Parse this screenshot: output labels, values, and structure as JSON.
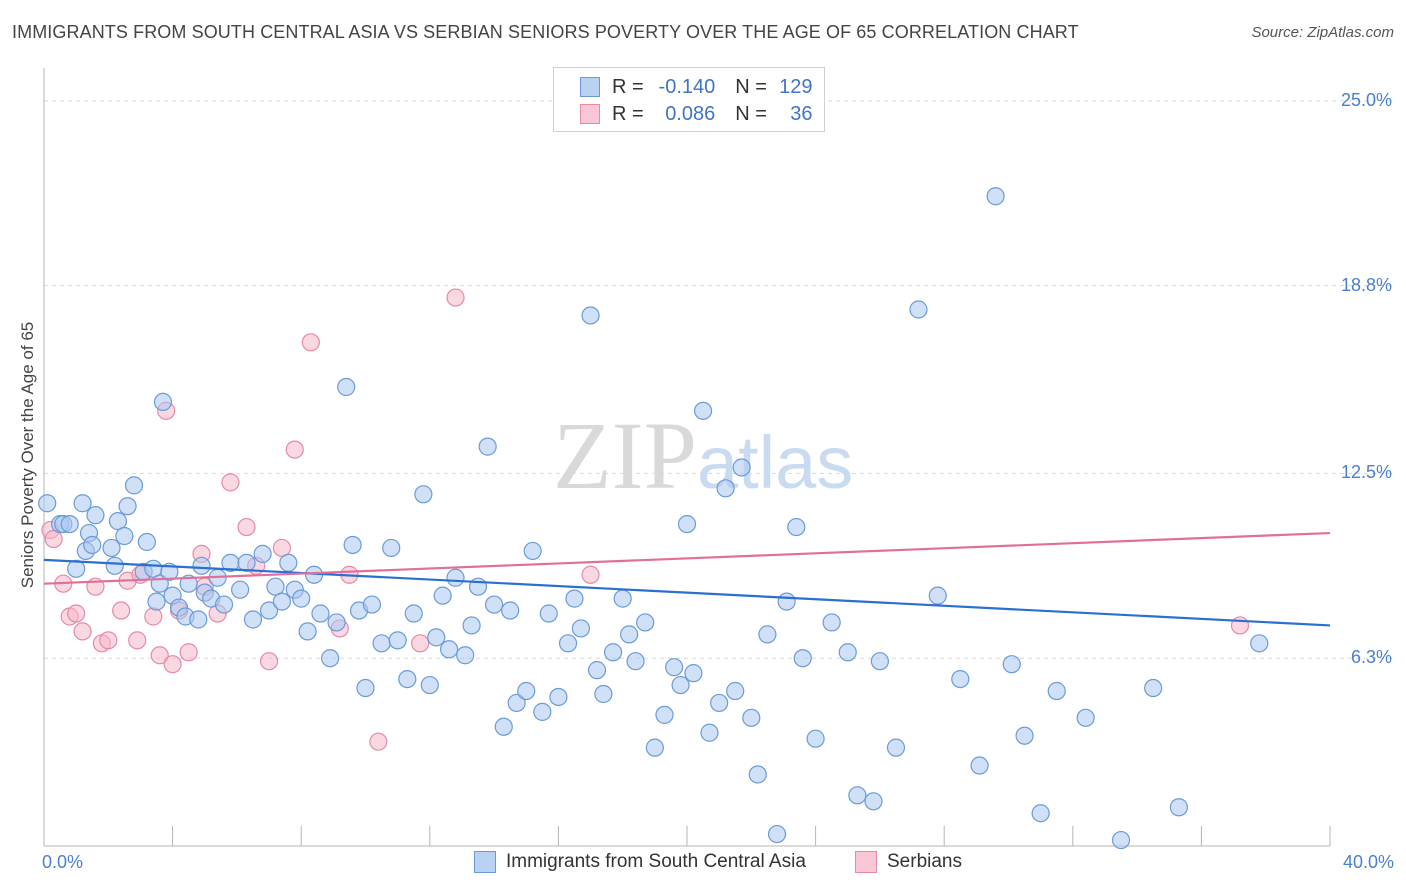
{
  "title": "IMMIGRANTS FROM SOUTH CENTRAL ASIA VS SERBIAN SENIORS POVERTY OVER THE AGE OF 65 CORRELATION CHART",
  "source": "Source: ZipAtlas.com",
  "watermark": {
    "zip": "ZIP",
    "atlas": "atlas"
  },
  "legend": {
    "r_label": "R =",
    "n_label": "N =",
    "rows": [
      {
        "name": "Immigrants from South Central Asia",
        "r": "-0.140",
        "n": "129"
      },
      {
        "name": "Serbians",
        "r": "0.086",
        "n": "36"
      }
    ]
  },
  "colors": {
    "blue_fill": "#a9c8f0",
    "blue_stroke": "#6a9bd8",
    "blue_line": "#2b6fd0",
    "pink_fill": "#f5b8cb",
    "pink_stroke": "#e68aa6",
    "pink_line": "#e0709a",
    "tick_text": "#4a7fd0",
    "grid": "#d8d8d8"
  },
  "chart_data": {
    "type": "scatter",
    "title": "IMMIGRANTS FROM SOUTH CENTRAL ASIA VS SERBIAN SENIORS POVERTY OVER THE AGE OF 65 CORRELATION CHART",
    "xlabel": "",
    "ylabel": "Seniors Poverty Over the Age of 65",
    "xlim": [
      0,
      40
    ],
    "ylim": [
      0,
      25.7
    ],
    "x_tick_labels": [
      "0.0%",
      "40.0%"
    ],
    "y_ticks": [
      6.3,
      12.5,
      18.8,
      25.0
    ],
    "y_tick_labels": [
      "6.3%",
      "12.5%",
      "18.8%",
      "25.0%"
    ],
    "legend_labels": [
      "Immigrants from South Central Asia",
      "Serbians"
    ],
    "series": [
      {
        "name": "Immigrants from South Central Asia",
        "trend": {
          "x": [
            0,
            40
          ],
          "y": [
            9.6,
            7.4
          ]
        },
        "points": [
          [
            0.1,
            11.5
          ],
          [
            0.5,
            10.8
          ],
          [
            0.6,
            10.8
          ],
          [
            0.8,
            10.8
          ],
          [
            1.0,
            9.3
          ],
          [
            1.2,
            11.5
          ],
          [
            1.3,
            9.9
          ],
          [
            1.4,
            10.5
          ],
          [
            1.5,
            10.1
          ],
          [
            1.6,
            11.1
          ],
          [
            2.1,
            10.0
          ],
          [
            2.2,
            9.4
          ],
          [
            2.3,
            10.9
          ],
          [
            2.5,
            10.4
          ],
          [
            2.6,
            11.4
          ],
          [
            2.8,
            12.1
          ],
          [
            3.1,
            9.2
          ],
          [
            3.2,
            10.2
          ],
          [
            3.4,
            9.3
          ],
          [
            3.5,
            8.2
          ],
          [
            3.6,
            8.8
          ],
          [
            3.7,
            14.9
          ],
          [
            3.9,
            9.2
          ],
          [
            4.0,
            8.4
          ],
          [
            4.2,
            8.0
          ],
          [
            4.4,
            7.7
          ],
          [
            4.5,
            8.8
          ],
          [
            4.8,
            7.6
          ],
          [
            4.9,
            9.4
          ],
          [
            5.0,
            8.5
          ],
          [
            5.2,
            8.3
          ],
          [
            5.4,
            9.0
          ],
          [
            5.6,
            8.1
          ],
          [
            5.8,
            9.5
          ],
          [
            6.1,
            8.6
          ],
          [
            6.3,
            9.5
          ],
          [
            6.5,
            7.6
          ],
          [
            6.8,
            9.8
          ],
          [
            7.0,
            7.9
          ],
          [
            7.2,
            8.7
          ],
          [
            7.4,
            8.2
          ],
          [
            7.6,
            9.5
          ],
          [
            7.8,
            8.6
          ],
          [
            8.0,
            8.3
          ],
          [
            8.2,
            7.2
          ],
          [
            8.4,
            9.1
          ],
          [
            8.6,
            7.8
          ],
          [
            8.9,
            6.3
          ],
          [
            9.1,
            7.5
          ],
          [
            9.4,
            15.4
          ],
          [
            9.6,
            10.1
          ],
          [
            9.8,
            7.9
          ],
          [
            10.0,
            5.3
          ],
          [
            10.2,
            8.1
          ],
          [
            10.5,
            6.8
          ],
          [
            10.8,
            10.0
          ],
          [
            11.0,
            6.9
          ],
          [
            11.3,
            5.6
          ],
          [
            11.5,
            7.8
          ],
          [
            11.8,
            11.8
          ],
          [
            12.0,
            5.4
          ],
          [
            12.2,
            7.0
          ],
          [
            12.4,
            8.4
          ],
          [
            12.6,
            6.6
          ],
          [
            12.8,
            9.0
          ],
          [
            13.1,
            6.4
          ],
          [
            13.3,
            7.4
          ],
          [
            13.5,
            8.7
          ],
          [
            13.8,
            13.4
          ],
          [
            14.0,
            8.1
          ],
          [
            14.3,
            4.0
          ],
          [
            14.5,
            7.9
          ],
          [
            14.7,
            4.8
          ],
          [
            15.0,
            5.2
          ],
          [
            15.2,
            9.9
          ],
          [
            15.5,
            4.5
          ],
          [
            15.7,
            7.8
          ],
          [
            16.0,
            5.0
          ],
          [
            16.3,
            6.8
          ],
          [
            16.5,
            8.3
          ],
          [
            16.7,
            7.3
          ],
          [
            17.0,
            17.8
          ],
          [
            17.2,
            5.9
          ],
          [
            17.4,
            5.1
          ],
          [
            17.7,
            6.5
          ],
          [
            18.0,
            8.3
          ],
          [
            18.2,
            7.1
          ],
          [
            18.4,
            6.2
          ],
          [
            18.7,
            7.5
          ],
          [
            19.0,
            3.3
          ],
          [
            19.3,
            4.4
          ],
          [
            19.6,
            6.0
          ],
          [
            19.8,
            5.4
          ],
          [
            20.0,
            10.8
          ],
          [
            20.2,
            5.8
          ],
          [
            20.5,
            14.6
          ],
          [
            20.7,
            3.8
          ],
          [
            21.0,
            4.8
          ],
          [
            21.2,
            12.0
          ],
          [
            21.5,
            5.2
          ],
          [
            21.7,
            12.7
          ],
          [
            22.0,
            4.3
          ],
          [
            22.2,
            2.4
          ],
          [
            22.5,
            7.1
          ],
          [
            22.8,
            0.4
          ],
          [
            23.1,
            8.2
          ],
          [
            23.4,
            10.7
          ],
          [
            23.6,
            6.3
          ],
          [
            24.0,
            3.6
          ],
          [
            24.5,
            7.5
          ],
          [
            25.0,
            6.5
          ],
          [
            25.3,
            1.7
          ],
          [
            25.8,
            1.5
          ],
          [
            26.0,
            6.2
          ],
          [
            26.5,
            3.3
          ],
          [
            27.2,
            18.0
          ],
          [
            27.8,
            8.4
          ],
          [
            28.5,
            5.6
          ],
          [
            29.1,
            2.7
          ],
          [
            29.6,
            21.8
          ],
          [
            30.1,
            6.1
          ],
          [
            30.5,
            3.7
          ],
          [
            31.0,
            1.1
          ],
          [
            31.5,
            5.2
          ],
          [
            32.4,
            4.3
          ],
          [
            33.5,
            0.2
          ],
          [
            34.5,
            5.3
          ],
          [
            35.3,
            1.3
          ],
          [
            37.8,
            6.8
          ]
        ]
      },
      {
        "name": "Serbians",
        "trend": {
          "x": [
            0,
            40
          ],
          "y": [
            8.8,
            10.5
          ]
        },
        "points": [
          [
            0.2,
            10.6
          ],
          [
            0.3,
            10.3
          ],
          [
            0.6,
            8.8
          ],
          [
            0.8,
            7.7
          ],
          [
            1.0,
            7.8
          ],
          [
            1.2,
            7.2
          ],
          [
            1.6,
            8.7
          ],
          [
            1.8,
            6.8
          ],
          [
            2.0,
            6.9
          ],
          [
            2.4,
            7.9
          ],
          [
            2.6,
            8.9
          ],
          [
            2.9,
            6.9
          ],
          [
            3.0,
            9.1
          ],
          [
            3.4,
            7.7
          ],
          [
            3.6,
            6.4
          ],
          [
            3.8,
            14.6
          ],
          [
            4.0,
            6.1
          ],
          [
            4.2,
            7.9
          ],
          [
            4.5,
            6.5
          ],
          [
            4.9,
            9.8
          ],
          [
            5.0,
            8.7
          ],
          [
            5.4,
            7.8
          ],
          [
            5.8,
            12.2
          ],
          [
            6.3,
            10.7
          ],
          [
            6.6,
            9.4
          ],
          [
            7.0,
            6.2
          ],
          [
            7.4,
            10.0
          ],
          [
            7.8,
            13.3
          ],
          [
            8.3,
            16.9
          ],
          [
            9.2,
            7.3
          ],
          [
            9.5,
            9.1
          ],
          [
            10.4,
            3.5
          ],
          [
            11.7,
            6.8
          ],
          [
            12.8,
            18.4
          ],
          [
            17.0,
            9.1
          ],
          [
            37.2,
            7.4
          ]
        ]
      }
    ]
  }
}
